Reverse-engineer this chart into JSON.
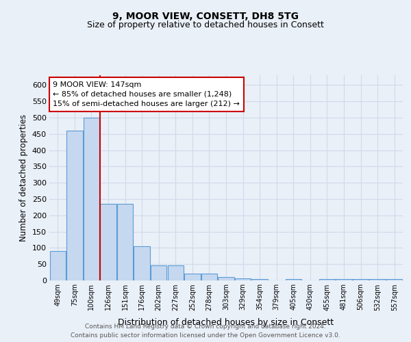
{
  "title1": "9, MOOR VIEW, CONSETT, DH8 5TG",
  "title2": "Size of property relative to detached houses in Consett",
  "xlabel": "Distribution of detached houses by size in Consett",
  "ylabel": "Number of detached properties",
  "bar_labels": [
    "49sqm",
    "75sqm",
    "100sqm",
    "126sqm",
    "151sqm",
    "176sqm",
    "202sqm",
    "227sqm",
    "252sqm",
    "278sqm",
    "303sqm",
    "329sqm",
    "354sqm",
    "379sqm",
    "405sqm",
    "430sqm",
    "455sqm",
    "481sqm",
    "506sqm",
    "532sqm",
    "557sqm"
  ],
  "bar_heights": [
    90,
    460,
    500,
    235,
    235,
    105,
    47,
    47,
    20,
    20,
    10,
    7,
    5,
    0,
    5,
    0,
    5,
    5,
    5,
    5,
    5
  ],
  "bar_color": "#c5d8f0",
  "bar_edge_color": "#5b9bd5",
  "vline_pos": 2.5,
  "vline_color": "#cc0000",
  "annotation_text": "9 MOOR VIEW: 147sqm\n← 85% of detached houses are smaller (1,248)\n15% of semi-detached houses are larger (212) →",
  "annotation_box_color": "#ffffff",
  "annotation_box_edge": "#cc0000",
  "ylim": [
    0,
    630
  ],
  "yticks": [
    0,
    50,
    100,
    150,
    200,
    250,
    300,
    350,
    400,
    450,
    500,
    550,
    600
  ],
  "footer1": "Contains HM Land Registry data © Crown copyright and database right 2024.",
  "footer2": "Contains public sector information licensed under the Open Government Licence v3.0.",
  "bg_color": "#eaf0f8",
  "grid_color": "#d0daea",
  "title1_fontsize": 10,
  "title2_fontsize": 9
}
